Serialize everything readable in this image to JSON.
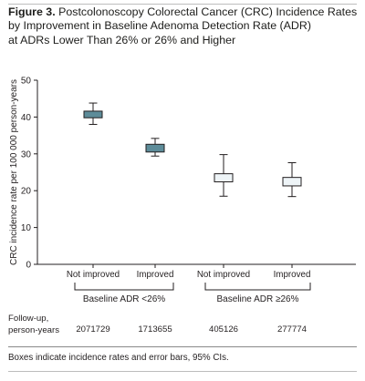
{
  "figure": {
    "label": "Figure 3.",
    "title_line1": "Postcolonoscopy Colorectal Cancer (CRC) Incidence Rates",
    "title_line2": "by Improvement in Baseline Adenoma Detection Rate (ADR)",
    "title_line3": "at ADRs Lower Than 26% or 26% and Higher",
    "footnote": "Boxes indicate incidence rates and error bars, 95% CIs.",
    "followup_label_1": "Follow-up,",
    "followup_label_2": "person-years",
    "followup_values": [
      "2071729",
      "1713655",
      "405126",
      "277774"
    ]
  },
  "colors": {
    "dark_box": "#5d8c99",
    "light_box": "#eef4f7",
    "line": "#231f20"
  },
  "chart_data": {
    "type": "box",
    "ylabel": "CRC incidence rate per 100 000 person-years",
    "ylim": [
      0,
      50
    ],
    "yticks": [
      0,
      10,
      20,
      30,
      40,
      50
    ],
    "categories": [
      "Not improved",
      "Improved",
      "Not improved",
      "Improved"
    ],
    "groups": [
      {
        "label": "Baseline ADR <26%",
        "members": [
          0,
          1
        ]
      },
      {
        "label": "Baseline ADR ≥26%",
        "members": [
          2,
          3
        ]
      }
    ],
    "boxes": [
      {
        "category": "Not improved",
        "group": "Baseline ADR <26%",
        "box_low": 39.8,
        "box_high": 41.6,
        "ci_low": 38.0,
        "ci_high": 43.8,
        "style": "dark"
      },
      {
        "category": "Improved",
        "group": "Baseline ADR <26%",
        "box_low": 30.5,
        "box_high": 32.6,
        "ci_low": 29.4,
        "ci_high": 34.2,
        "style": "dark"
      },
      {
        "category": "Not improved",
        "group": "Baseline ADR ≥26%",
        "box_low": 22.4,
        "box_high": 24.6,
        "ci_low": 18.5,
        "ci_high": 29.8,
        "style": "light"
      },
      {
        "category": "Improved",
        "group": "Baseline ADR ≥26%",
        "box_low": 21.3,
        "box_high": 23.6,
        "ci_low": 18.4,
        "ci_high": 27.6,
        "style": "light"
      }
    ]
  }
}
